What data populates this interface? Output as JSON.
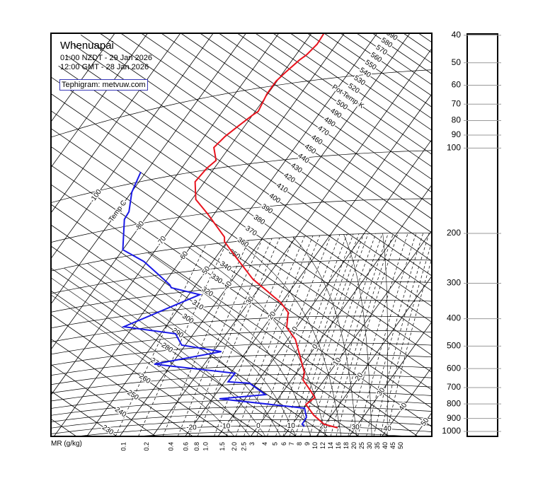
{
  "header": {
    "station": "Whenuapai",
    "local_time": "01:00 NZDT - 29 Jan 2026",
    "utc_time": "12:00 GMT - 28 Jan 2026",
    "credit": "Tephigram: metvuw.com"
  },
  "chart_data": {
    "type": "line",
    "diagram": "tephigram",
    "title": "Whenuapai",
    "temperature_axis_label": "Temp C",
    "potential_temperature_axis_label": "Pot Temp K",
    "mixing_ratio_axis_label": "MR (g/kg)",
    "colors": {
      "temperature": "#e8141e",
      "dewpoint": "#1a1ae6",
      "grid": "#000000"
    },
    "series": [
      {
        "name": "Temperature",
        "units": "[hPa, degC]",
        "points": [
          [
            1008,
            24.6
          ],
          [
            982,
            19.7
          ],
          [
            912,
            14.5
          ],
          [
            836,
            9.8
          ],
          [
            788,
            11.0
          ],
          [
            734,
            7.4
          ],
          [
            681,
            3.5
          ],
          [
            642,
            2.4
          ],
          [
            484,
            -7.7
          ],
          [
            436,
            -13.0
          ],
          [
            384,
            -15.8
          ],
          [
            352,
            -20.2
          ],
          [
            283,
            -33.9
          ],
          [
            229,
            -44.1
          ],
          [
            198,
            -50.8
          ],
          [
            190,
            -51.8
          ],
          [
            151,
            -62.0
          ],
          [
            130,
            -68.8
          ],
          [
            110,
            -72.9
          ],
          [
            98.5,
            -72.3
          ],
          [
            92.8,
            -71.2
          ],
          [
            81.9,
            -74.7
          ],
          [
            75,
            -73.7
          ],
          [
            69.2,
            -71.9
          ],
          [
            63.9,
            -70.0
          ],
          [
            62.2,
            -69.1
          ],
          [
            53.4,
            -70.3
          ],
          [
            48.1,
            -70.3
          ],
          [
            44.9,
            -69.4
          ],
          [
            40.7,
            -67.8
          ],
          [
            39.2,
            -66.8
          ],
          [
            36,
            -65.9
          ],
          [
            32.9,
            -66.2
          ]
        ]
      },
      {
        "name": "Dewpoint",
        "units": "[hPa, degC]",
        "points": [
          [
            1003,
            14.2
          ],
          [
            985,
            13.0
          ],
          [
            930,
            12.8
          ],
          [
            862,
            10.2
          ],
          [
            788,
            -17.8
          ],
          [
            769,
            -4.7
          ],
          [
            696,
            -12.0
          ],
          [
            683,
            -18.9
          ],
          [
            636,
            -18.7
          ],
          [
            560,
            -45.3
          ],
          [
            524,
            -27.6
          ],
          [
            483,
            -41.1
          ],
          [
            434,
            -45.5
          ],
          [
            386,
            -62.8
          ],
          [
            312,
            -46.7
          ],
          [
            285,
            -56.9
          ],
          [
            277,
            -58.0
          ],
          [
            216,
            -71.0
          ],
          [
            187,
            -80.0
          ],
          [
            140,
            -86.2
          ],
          [
            131,
            -86.5
          ],
          [
            109,
            -89.9
          ],
          [
            91,
            -91.6
          ]
        ]
      }
    ],
    "pressure_ticks": [
      40,
      50,
      60,
      70,
      80,
      90,
      100,
      200,
      300,
      400,
      500,
      600,
      700,
      800,
      900,
      1000
    ],
    "isotherm_labels": [
      -100,
      -90,
      -80,
      -70,
      -60,
      -50,
      -40,
      -30,
      -20,
      -10,
      0,
      10,
      20,
      30,
      40,
      50
    ],
    "surface_isotherm_labels": [
      -20,
      -10,
      0,
      10,
      20,
      30,
      40
    ],
    "theta_labels": [
      230,
      240,
      250,
      260,
      270,
      280,
      290,
      300,
      310,
      320,
      330,
      340,
      350,
      360,
      370,
      380,
      390,
      400,
      410,
      420,
      430,
      440,
      450,
      460,
      470,
      480,
      490,
      500,
      510,
      520,
      530,
      540,
      550,
      560,
      570,
      580,
      590
    ],
    "mixing_ratio_labels": [
      "0.1",
      "0.2",
      "0.4",
      "0.6",
      "0.8",
      "1.0",
      "1.5",
      "2.0",
      "2.5",
      "3",
      "4",
      "5",
      "6",
      "7",
      "8",
      "9",
      "10",
      "12",
      "14",
      "16",
      "18",
      "20",
      "25",
      "30",
      "35",
      "40",
      "45",
      "50"
    ]
  }
}
